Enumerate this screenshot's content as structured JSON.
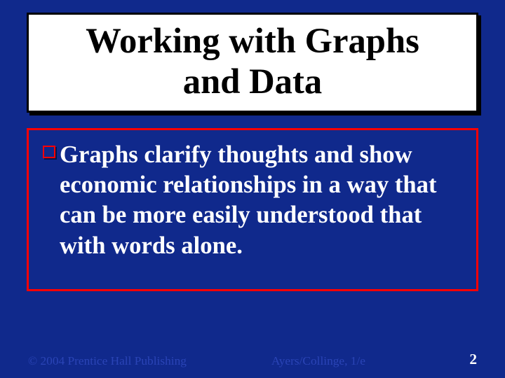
{
  "slide": {
    "background_color": "#10298c",
    "title": {
      "text": "Working with Graphs\nand Data",
      "font_size_pt": 38,
      "color": "#000000",
      "box_border_color": "#000000",
      "box_background": "#ffffff"
    },
    "body": {
      "box_border_color": "#ff0000",
      "box_background": "transparent",
      "bullet": {
        "marker_border_color": "#ff0000",
        "marker_fill": "transparent",
        "text": "Graphs clarify thoughts and show economic relationships in a way that can be more easily understood that with words alone.",
        "font_size_pt": 26,
        "color": "#ffffff"
      }
    },
    "footer": {
      "left": "© 2004 Prentice Hall Publishing",
      "center": "Ayers/Collinge, 1/e",
      "page_number": "2",
      "font_size_pt": 13,
      "left_color": "#2a44b6",
      "center_color": "#2a44b6",
      "page_color": "#ffffff"
    }
  }
}
